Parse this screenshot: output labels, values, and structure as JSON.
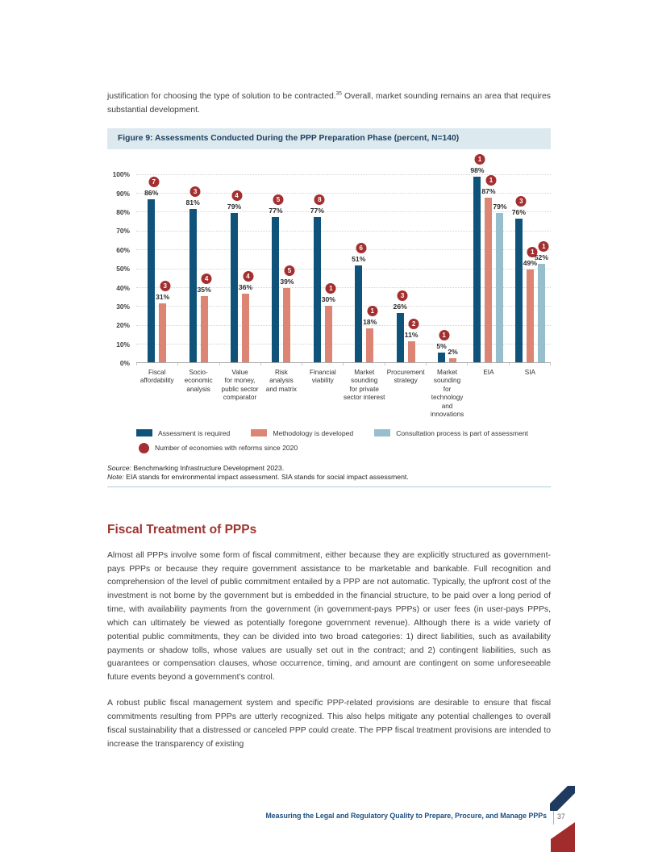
{
  "page": {
    "intro": {
      "part1": "justification for choosing the type of solution to be contracted.",
      "footnote": "35",
      "part2": " Overall, market sounding remains an area that requires substantial development."
    },
    "section": {
      "heading": "Fiscal Treatment of PPPs",
      "para1": "Almost all PPPs involve some form of fiscal commitment, either because they are explicitly structured as government-pays PPPs or because they require government assistance to be marketable and bankable. Full recognition and comprehension of the level of public commitment entailed by a PPP are not automatic. Typically, the upfront cost of the investment is not borne by the government but is embedded in the financial structure, to be paid over a long period of time, with availability payments from the government (in government-pays PPPs) or user fees (in user-pays PPPs, which can ultimately be viewed as potentially foregone government revenue). Although there is a wide variety of potential public commitments, they can be divided into two broad categories: 1) direct liabilities, such as availability payments or shadow tolls, whose values are usually set out in the contract; and 2) contingent liabilities, such as guarantees or compensation clauses, whose occurrence, timing, and amount are contingent on some unforeseeable future events beyond a government’s control.",
      "para2": "A robust public fiscal management system and specific PPP-related provisions are desirable to ensure that fiscal commitments resulting from PPPs are utterly recognized. This also helps mitigate any potential challenges to overall fiscal sustainability that a distressed or canceled PPP could create. The PPP fiscal treatment provisions are intended to increase the transparency of existing"
    },
    "footer": {
      "title": "Measuring the Legal and Regulatory Quality to Prepare, Procure, and Manage PPPs",
      "page_number": "37"
    }
  },
  "figure": {
    "title": "Figure 9: Assessments Conducted During the PPP Preparation Phase (percent, N=140)",
    "source_label": "Source:",
    "source_text": " Benchmarking Infrastructure Development 2023.",
    "note_label": "Note:",
    "note_text": " EIA stands for environmental impact assessment. SIA stands for social impact assessment."
  },
  "chart_data": {
    "type": "bar",
    "title": "Figure 9: Assessments Conducted During the PPP Preparation Phase (percent, N=140)",
    "xlabel": "",
    "ylabel": "",
    "ylim": [
      0,
      100
    ],
    "grid": true,
    "legend_position": "bottom",
    "yticks": [
      "100%",
      "90%",
      "80%",
      "70%",
      "60%",
      "50%",
      "40%",
      "30%",
      "20%",
      "10%",
      "0%"
    ],
    "series": [
      "Assessment is required",
      "Methodology is developed",
      "Consultation process is part of assessment"
    ],
    "badge_legend": "Number of economies with reforms since 2020",
    "badge_meaning": "Number of economies with reforms since 2020, shown in circles above bars",
    "categories": [
      {
        "label": "Fiscal\naffordability",
        "values": [
          86,
          31
        ],
        "badges": [
          7,
          3
        ]
      },
      {
        "label": "Socio-\neconomic\nanalysis",
        "values": [
          81,
          35
        ],
        "badges": [
          3,
          4
        ]
      },
      {
        "label": "Value\nfor money,\npublic sector\ncomparator",
        "values": [
          79,
          36
        ],
        "badges": [
          4,
          4
        ]
      },
      {
        "label": "Risk\nanalysis\nand matrix",
        "values": [
          77,
          39
        ],
        "badges": [
          5,
          5
        ]
      },
      {
        "label": "Financial\nviability",
        "values": [
          77,
          30
        ],
        "badges": [
          8,
          1
        ]
      },
      {
        "label": "Market\nsounding\nfor private\nsector interest",
        "values": [
          51,
          18
        ],
        "badges": [
          6,
          1
        ]
      },
      {
        "label": "Procurement\nstrategy",
        "values": [
          26,
          11
        ],
        "badges": [
          3,
          2
        ]
      },
      {
        "label": "Market\nsounding\nfor technology\nand innovations",
        "values": [
          5,
          2
        ],
        "badges": [
          1,
          null
        ]
      },
      {
        "label": "EIA",
        "values": [
          98,
          87,
          79
        ],
        "badges": [
          1,
          1,
          null
        ]
      },
      {
        "label": "SIA",
        "values": [
          76,
          49,
          52
        ],
        "badges": [
          3,
          1,
          1
        ]
      }
    ]
  },
  "colors": {
    "bar-navy": "#10537a",
    "bar-salmon": "#dd8574",
    "bar-lightblue": "#97becd",
    "badge-red": "#a42f30",
    "heading-red": "#a0342f",
    "figure-header-bg": "#dce9ef",
    "figure-header-text": "#1c3e5e",
    "footer-navy": "#1b4e7f",
    "stripe-navy": "#1e3a5f",
    "shape-red": "#a22c2c",
    "rule-blue": "#aacbdd",
    "text-dark": "#414042"
  }
}
